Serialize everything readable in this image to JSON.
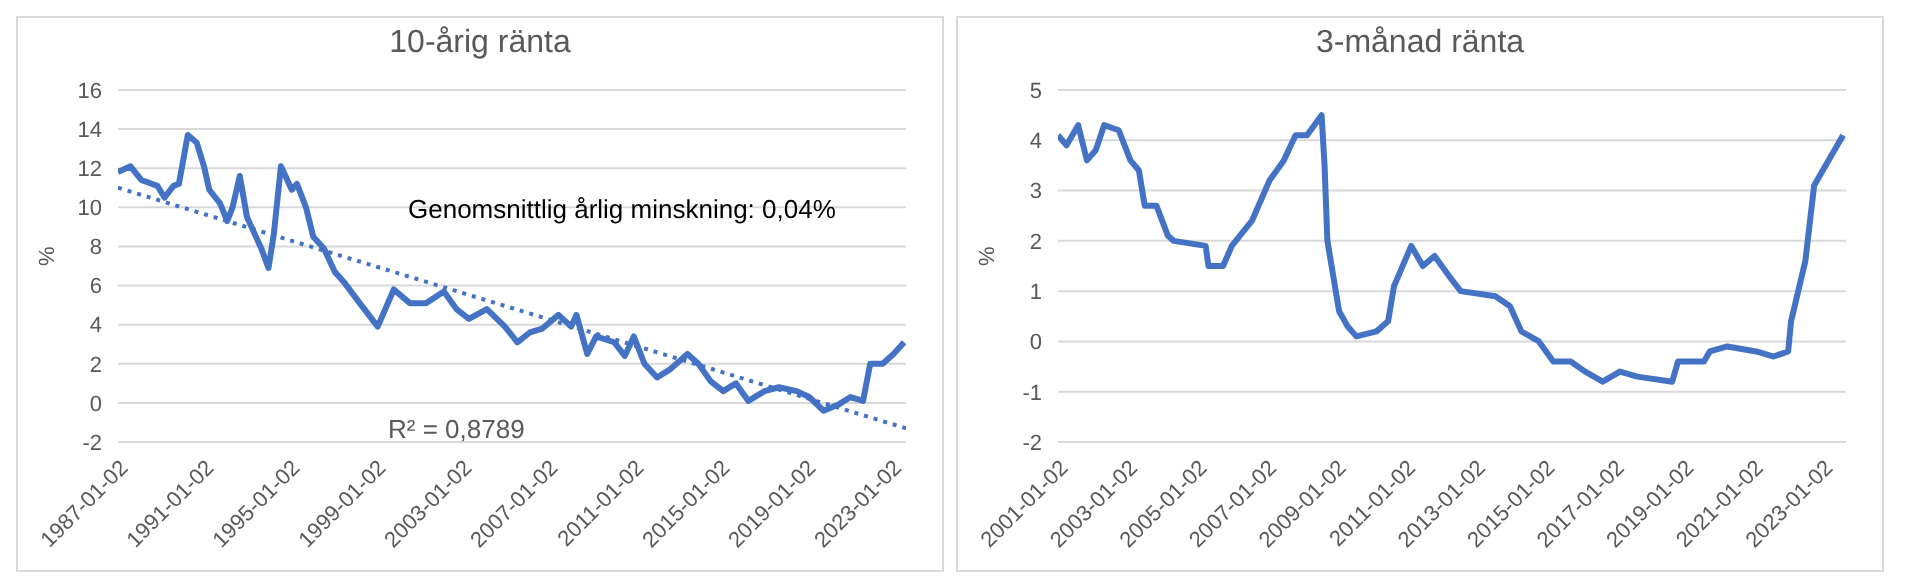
{
  "chart_data": [
    {
      "type": "line",
      "title": "10-årig ränta",
      "ylabel": "%",
      "ylim": [
        -2,
        16
      ],
      "yticks": [
        -2,
        0,
        2,
        4,
        6,
        8,
        10,
        12,
        14,
        16
      ],
      "xlim": [
        "1987-01-01",
        "2023-09-01"
      ],
      "xticks": [
        "1987-01-02",
        "1991-01-02",
        "1995-01-02",
        "1999-01-02",
        "2003-01-02",
        "2007-01-02",
        "2011-01-02",
        "2015-01-02",
        "2019-01-02",
        "2023-01-02"
      ],
      "grid": "y",
      "marker": "none",
      "annotations": [
        "Genomsnittlig årlig minskning: 0,04%",
        "R² = 0,8789"
      ],
      "series": [
        {
          "color": "#4472c4",
          "line_style": "solid",
          "x": [
            "1987-01",
            "1987-08",
            "1988-02",
            "1988-11",
            "1989-03",
            "1989-08",
            "1989-11",
            "1990-04",
            "1990-09",
            "1991-01",
            "1991-04",
            "1991-10",
            "1992-02",
            "1992-05",
            "1992-09",
            "1993-01",
            "1993-09",
            "1994-01",
            "1994-04",
            "1994-08",
            "1995-02",
            "1995-05",
            "1995-10",
            "1996-02",
            "1996-08",
            "1997-02",
            "1997-07",
            "1998-04",
            "1999-02",
            "1999-11",
            "2000-08",
            "2001-05",
            "2002-03",
            "2002-10",
            "2003-05",
            "2004-03",
            "2005-01",
            "2005-08",
            "2006-03",
            "2006-10",
            "2007-07",
            "2008-02",
            "2008-05",
            "2008-11",
            "2009-04",
            "2010-02",
            "2010-08",
            "2011-01",
            "2011-07",
            "2012-02",
            "2012-09",
            "2013-07",
            "2014-01",
            "2014-08",
            "2015-03",
            "2015-10",
            "2016-05",
            "2017-02",
            "2017-10",
            "2018-08",
            "2019-03",
            "2019-11",
            "2020-07",
            "2021-02",
            "2021-09",
            "2022-01",
            "2022-08",
            "2023-02",
            "2023-08"
          ],
          "values": [
            11.8,
            12.1,
            11.4,
            11.1,
            10.5,
            11.1,
            11.2,
            13.7,
            13.3,
            12.1,
            10.9,
            10.2,
            9.3,
            10.0,
            11.6,
            9.5,
            7.9,
            6.9,
            8.6,
            12.1,
            10.9,
            11.2,
            10.0,
            8.5,
            7.9,
            6.7,
            6.2,
            5.1,
            3.9,
            5.8,
            5.1,
            5.1,
            5.7,
            4.8,
            4.3,
            4.8,
            3.9,
            3.1,
            3.6,
            3.8,
            4.5,
            3.9,
            4.5,
            2.5,
            3.4,
            3.1,
            2.4,
            3.4,
            2.0,
            1.3,
            1.7,
            2.5,
            2.0,
            1.1,
            0.6,
            1.0,
            0.1,
            0.6,
            0.8,
            0.6,
            0.3,
            -0.4,
            -0.1,
            0.3,
            0.1,
            2.0,
            2.0,
            2.5,
            3.1
          ]
        },
        {
          "type": "line",
          "color": "#4472c4",
          "line_style": "dotted",
          "x": [
            "1987-01",
            "2023-09"
          ],
          "values": [
            11.0,
            -1.3
          ]
        }
      ]
    },
    {
      "type": "line",
      "title": "3-månad ränta",
      "ylabel": "%",
      "ylim": [
        -2,
        5
      ],
      "yticks": [
        -2,
        -1,
        0,
        1,
        2,
        3,
        4,
        5
      ],
      "xlim": [
        "2001-01-01",
        "2023-09-01"
      ],
      "xticks": [
        "2001-01-02",
        "2003-01-02",
        "2005-01-02",
        "2007-01-02",
        "2009-01-02",
        "2011-01-02",
        "2013-01-02",
        "2015-01-02",
        "2017-01-02",
        "2019-01-02",
        "2021-01-02",
        "2023-01-02"
      ],
      "grid": "y",
      "marker": "none",
      "series": [
        {
          "color": "#4472c4",
          "line_style": "solid",
          "x": [
            "2001-01",
            "2001-04",
            "2001-08",
            "2001-11",
            "2002-02",
            "2002-05",
            "2002-10",
            "2003-02",
            "2003-05",
            "2003-07",
            "2003-11",
            "2004-03",
            "2004-05",
            "2005-04",
            "2005-05",
            "2005-10",
            "2006-01",
            "2006-08",
            "2007-02",
            "2007-07",
            "2007-11",
            "2008-03",
            "2008-08",
            "2008-09",
            "2008-10",
            "2009-02",
            "2009-05",
            "2009-08",
            "2010-03",
            "2010-07",
            "2010-09",
            "2011-03",
            "2011-07",
            "2011-11",
            "2012-04",
            "2012-08",
            "2013-08",
            "2014-01",
            "2014-05",
            "2014-11",
            "2015-04",
            "2015-10",
            "2016-03",
            "2016-09",
            "2017-03",
            "2017-09",
            "2018-09",
            "2018-11",
            "2019-08",
            "2019-10",
            "2020-04",
            "2021-02",
            "2021-08",
            "2022-01",
            "2022-02",
            "2022-07",
            "2022-10",
            "2023-03",
            "2023-08"
          ],
          "values": [
            4.1,
            3.9,
            4.3,
            3.6,
            3.8,
            4.3,
            4.2,
            3.6,
            3.4,
            2.7,
            2.7,
            2.1,
            2.0,
            1.9,
            1.5,
            1.5,
            1.9,
            2.4,
            3.2,
            3.6,
            4.1,
            4.1,
            4.5,
            3.5,
            2.0,
            0.6,
            0.3,
            0.1,
            0.2,
            0.4,
            1.1,
            1.9,
            1.5,
            1.7,
            1.3,
            1.0,
            0.9,
            0.7,
            0.2,
            0.0,
            -0.4,
            -0.4,
            -0.6,
            -0.8,
            -0.6,
            -0.7,
            -0.8,
            -0.4,
            -0.4,
            -0.2,
            -0.1,
            -0.2,
            -0.3,
            -0.2,
            0.4,
            1.6,
            3.1,
            3.6,
            4.1
          ]
        }
      ]
    }
  ]
}
